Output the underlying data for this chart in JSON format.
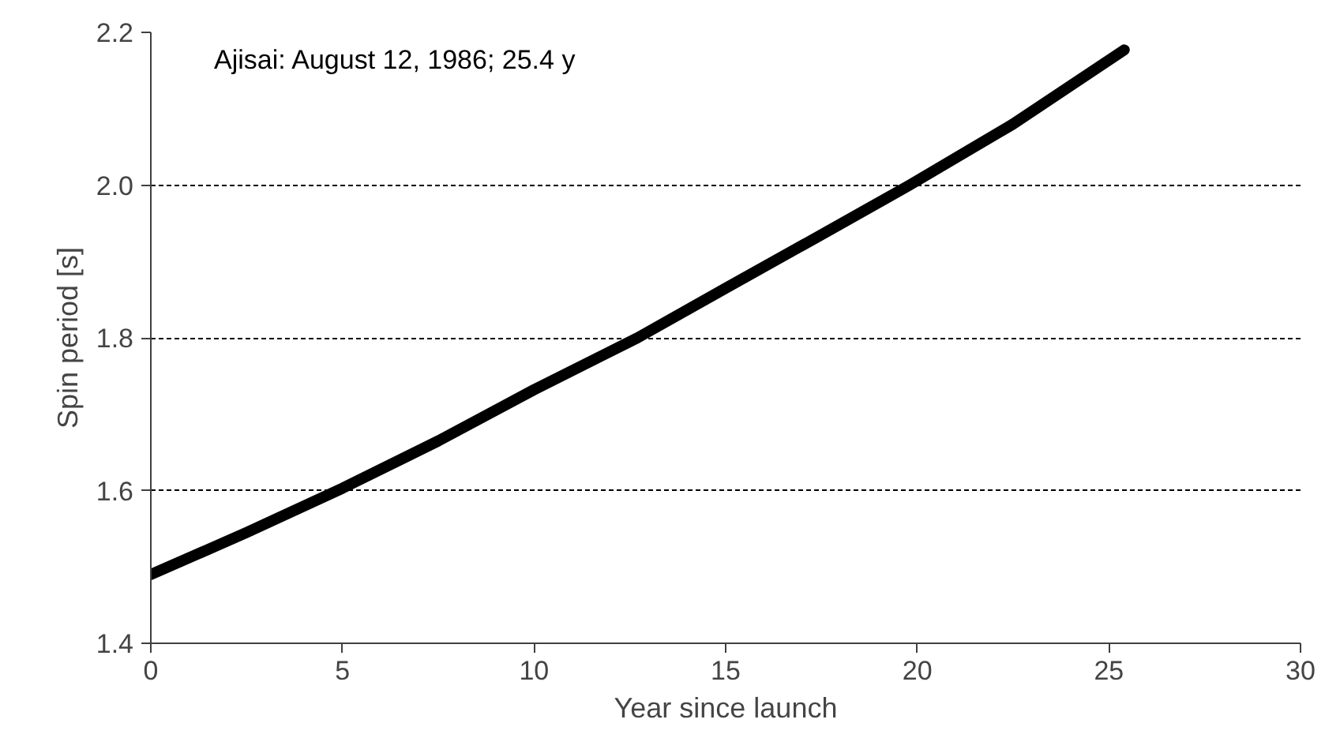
{
  "chart_data": {
    "type": "line",
    "xlabel": "Year since launch",
    "ylabel": "Spin period [s]",
    "annotations": [
      "Ajisai: August 12, 1986; 25.4 y"
    ],
    "series": [
      {
        "color": "#000000",
        "x": [
          0,
          2.5,
          5,
          7.5,
          10,
          12.7,
          15,
          17.5,
          19.8,
          22.5,
          25.4
        ],
        "values": [
          1.49,
          1.545,
          1.603,
          1.665,
          1.732,
          1.8,
          1.865,
          1.935,
          2.0,
          2.08,
          2.177
        ]
      }
    ],
    "xlim": [
      0,
      30
    ],
    "xticks": [
      0,
      5,
      10,
      15,
      20,
      25,
      30
    ],
    "ylim": [
      1.4,
      2.2
    ],
    "yticks": [
      {
        "value": 1.4,
        "label": "1.4"
      },
      {
        "value": 1.6,
        "label": "1.6"
      },
      {
        "value": 1.8,
        "label": "1.8"
      },
      {
        "value": 2.0,
        "label": "2.0"
      },
      {
        "value": 2.2,
        "label": "2.2"
      }
    ],
    "grid": "y",
    "line_style": "solid",
    "marker": "none"
  }
}
